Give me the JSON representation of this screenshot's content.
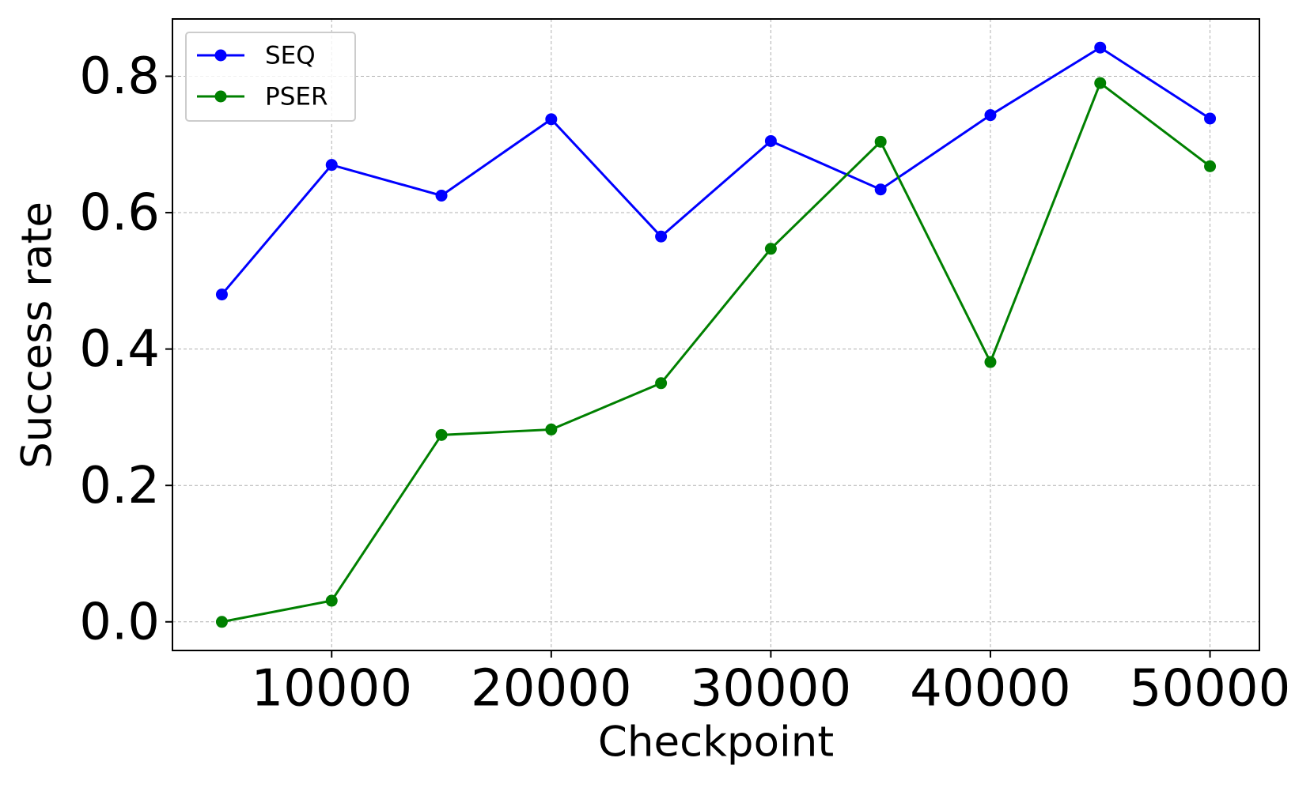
{
  "chart_data": {
    "type": "line",
    "x_label": "Checkpoint",
    "y_label": "Success rate",
    "x": [
      5000,
      10000,
      15000,
      20000,
      25000,
      30000,
      35000,
      40000,
      45000,
      50000
    ],
    "series": [
      {
        "name": "SEQ",
        "color": "#0000ff",
        "values": [
          0.48,
          0.67,
          0.625,
          0.737,
          0.565,
          0.705,
          0.634,
          0.743,
          0.842,
          0.738
        ]
      },
      {
        "name": "PSER",
        "color": "#008000",
        "values": [
          0.0,
          0.031,
          0.274,
          0.282,
          0.35,
          0.547,
          0.704,
          0.381,
          0.79,
          0.668
        ]
      }
    ],
    "xlim": [
      2750,
      52250
    ],
    "xticks": [
      10000,
      20000,
      30000,
      40000,
      50000
    ],
    "ylim": [
      -0.042,
      0.884
    ],
    "yticks": [
      {
        "value": 0,
        "label": "0.0"
      },
      {
        "value": 0.2,
        "label": "0.2"
      },
      {
        "value": 0.4,
        "label": "0.4"
      },
      {
        "value": 0.6,
        "label": "0.6"
      },
      {
        "value": 0.8,
        "label": "0.8"
      }
    ],
    "grid": true,
    "legend": "upper left"
  }
}
